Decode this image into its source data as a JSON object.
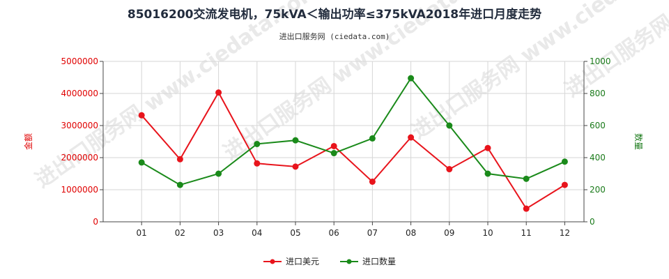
{
  "chart_data": {
    "type": "line",
    "title": "85016200交流发电机，75kVA＜输出功率≤375kVA2018年进口月度走势",
    "subtitle": "进出口服务网 (ciedata.com)",
    "categories": [
      "01",
      "02",
      "03",
      "04",
      "05",
      "06",
      "07",
      "08",
      "09",
      "10",
      "11",
      "12"
    ],
    "y_left": {
      "label": "金额",
      "range": [
        0,
        5000000
      ],
      "ticks": [
        "0",
        "1000000",
        "2000000",
        "3000000",
        "4000000",
        "5000000"
      ],
      "color": "#e00000"
    },
    "y_right": {
      "label": "数量",
      "range": [
        0,
        1000
      ],
      "ticks": [
        "0",
        "200",
        "400",
        "600",
        "800",
        "1000"
      ],
      "color": "#1a7a1a"
    },
    "series": [
      {
        "name": "进口美元",
        "axis": "left",
        "color": "#e8141c",
        "values": [
          3320000,
          1950000,
          4030000,
          1820000,
          1720000,
          2360000,
          1250000,
          2630000,
          1640000,
          2300000,
          410000,
          1150000
        ]
      },
      {
        "name": "进口数量",
        "axis": "right",
        "color": "#1a8a1a",
        "values": [
          370,
          230,
          300,
          485,
          508,
          428,
          520,
          895,
          600,
          300,
          268,
          375
        ]
      }
    ],
    "grid": true,
    "legend_position": "bottom"
  },
  "watermark": {
    "text": "进出口服务网 www.ciedata.com"
  }
}
